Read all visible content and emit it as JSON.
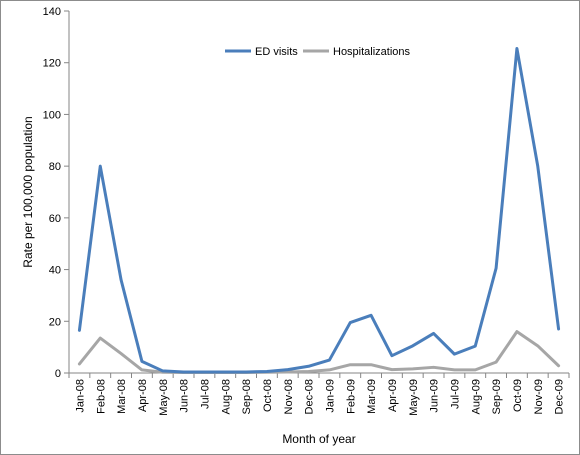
{
  "chart_data": {
    "type": "line",
    "title": "",
    "xlabel": "Month of year",
    "ylabel": "Rate per 100,000 population",
    "ylim": [
      0,
      140
    ],
    "yticks": [
      0,
      20,
      40,
      60,
      80,
      100,
      120,
      140
    ],
    "grid": false,
    "legend": "top-center",
    "categories": [
      "Jan-08",
      "Feb-08",
      "Mar-08",
      "Apr-08",
      "May-08",
      "Jun-08",
      "Jul-08",
      "Aug-08",
      "Sep-08",
      "Oct-08",
      "Nov-08",
      "Dec-08",
      "Jan-09",
      "Feb-09",
      "Mar-09",
      "Apr-09",
      "May-09",
      "Jun-09",
      "Jul-09",
      "Aug-09",
      "Sep-09",
      "Oct-09",
      "Nov-09",
      "Dec-09"
    ],
    "series": [
      {
        "name": "ED visits",
        "color": "#4a7ebb",
        "values": [
          16.5,
          80,
          36,
          4.5,
          0.8,
          0.4,
          0.4,
          0.4,
          0.4,
          0.6,
          1.3,
          2.6,
          5,
          19.5,
          22.3,
          6.7,
          10.5,
          15.3,
          7.3,
          10.4,
          40.5,
          125.5,
          80,
          17
        ]
      },
      {
        "name": "Hospitalizations",
        "color": "#a6a6a6",
        "values": [
          3.5,
          13.5,
          7.5,
          1.2,
          0.3,
          0.2,
          0.2,
          0.2,
          0.2,
          0.3,
          0.4,
          0.6,
          1.2,
          3.2,
          3.2,
          1.3,
          1.6,
          2.2,
          1.2,
          1.2,
          4.2,
          16,
          10.5,
          2.8
        ]
      }
    ]
  }
}
